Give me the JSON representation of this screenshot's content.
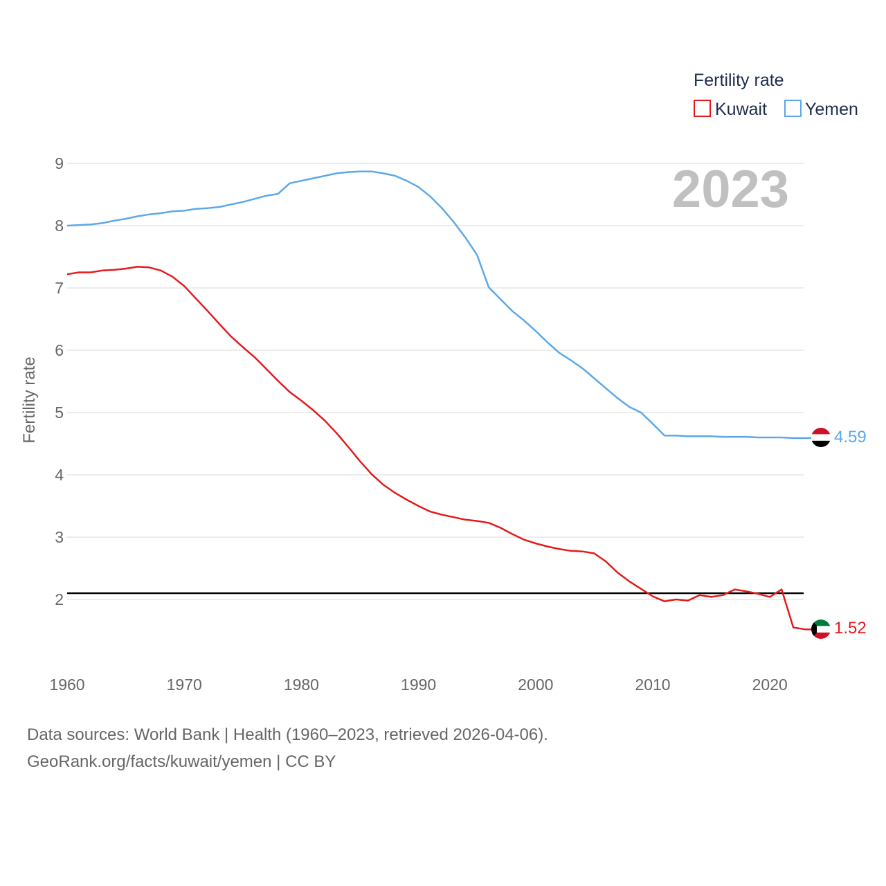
{
  "chart_data": {
    "type": "line",
    "title": "Fertility rate",
    "ylabel": "Fertility rate",
    "xlabel": "",
    "xlim": [
      1960,
      2023
    ],
    "ylim": [
      1,
      9.2
    ],
    "x_ticks": [
      1960,
      1970,
      1980,
      1990,
      2000,
      2010,
      2020
    ],
    "y_ticks": [
      2,
      3,
      4,
      5,
      6,
      7,
      8,
      9
    ],
    "reference_line": 2.1,
    "year_label": "2023",
    "legend_position": "top-right",
    "x": [
      1960,
      1961,
      1962,
      1963,
      1964,
      1965,
      1966,
      1967,
      1968,
      1969,
      1970,
      1971,
      1972,
      1973,
      1974,
      1975,
      1976,
      1977,
      1978,
      1979,
      1980,
      1981,
      1982,
      1983,
      1984,
      1985,
      1986,
      1987,
      1988,
      1989,
      1990,
      1991,
      1992,
      1993,
      1994,
      1995,
      1996,
      1997,
      1998,
      1999,
      2000,
      2001,
      2002,
      2003,
      2004,
      2005,
      2006,
      2007,
      2008,
      2009,
      2010,
      2011,
      2012,
      2013,
      2014,
      2015,
      2016,
      2017,
      2018,
      2019,
      2020,
      2021,
      2022,
      2023
    ],
    "series": [
      {
        "name": "Kuwait",
        "color": "#e41a1c",
        "end_label": "1.52",
        "values": [
          7.22,
          7.25,
          7.25,
          7.28,
          7.29,
          7.31,
          7.34,
          7.33,
          7.28,
          7.18,
          7.03,
          6.83,
          6.63,
          6.42,
          6.22,
          6.05,
          5.89,
          5.7,
          5.51,
          5.33,
          5.19,
          5.04,
          4.87,
          4.67,
          4.45,
          4.22,
          4.01,
          3.84,
          3.71,
          3.6,
          3.5,
          3.41,
          3.36,
          3.32,
          3.28,
          3.26,
          3.23,
          3.15,
          3.05,
          2.96,
          2.9,
          2.85,
          2.81,
          2.78,
          2.77,
          2.74,
          2.61,
          2.43,
          2.29,
          2.17,
          2.05,
          1.97,
          2.0,
          1.98,
          2.07,
          2.04,
          2.07,
          2.16,
          2.13,
          2.09,
          2.04,
          2.16,
          1.55,
          1.52
        ]
      },
      {
        "name": "Yemen",
        "color": "#5ca8e8",
        "end_label": "4.59",
        "values": [
          8.0,
          8.01,
          8.02,
          8.04,
          8.08,
          8.11,
          8.15,
          8.18,
          8.2,
          8.23,
          8.24,
          8.27,
          8.28,
          8.3,
          8.34,
          8.38,
          8.43,
          8.48,
          8.51,
          8.68,
          8.72,
          8.76,
          8.8,
          8.84,
          8.86,
          8.87,
          8.87,
          8.84,
          8.8,
          8.72,
          8.62,
          8.47,
          8.28,
          8.06,
          7.81,
          7.53,
          7.01,
          6.82,
          6.63,
          6.48,
          6.31,
          6.13,
          5.96,
          5.84,
          5.71,
          5.55,
          5.39,
          5.23,
          5.09,
          5.0,
          4.82,
          4.63,
          4.63,
          4.62,
          4.62,
          4.62,
          4.61,
          4.61,
          4.61,
          4.6,
          4.6,
          4.6,
          4.59,
          4.59
        ]
      }
    ]
  },
  "footer": {
    "line1": "Data sources: World Bank | Health (1960–2023, retrieved 2026-04-06).",
    "line2": "GeoRank.org/facts/kuwait/yemen | CC BY"
  }
}
